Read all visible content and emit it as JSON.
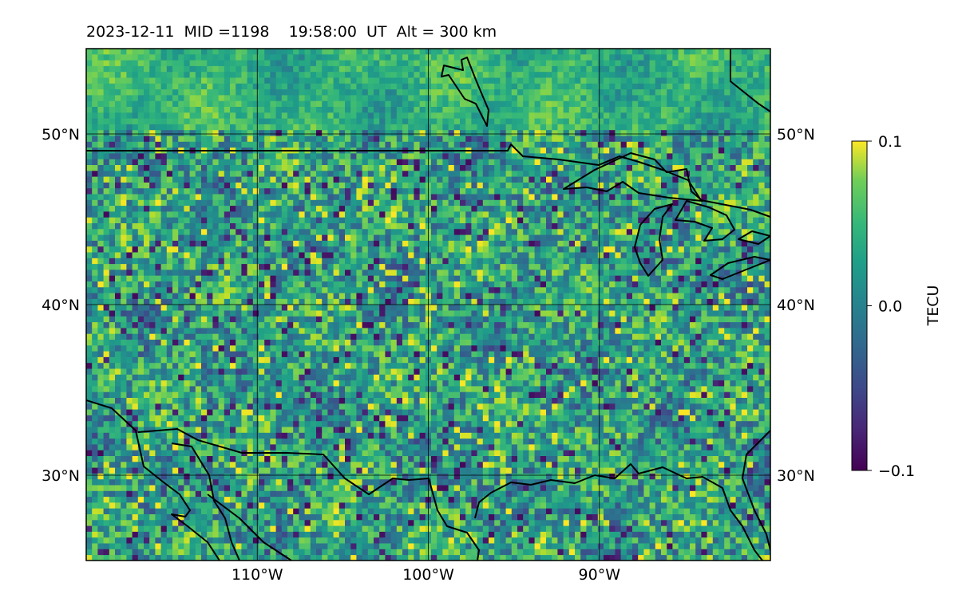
{
  "title": "2023-12-11  MID =1198    19:58:00  UT  Alt = 300 km",
  "map": {
    "lon_range": [
      -120,
      -80
    ],
    "lat_range": [
      25,
      55
    ],
    "lon_ticks": [
      {
        "value": -110,
        "label": "110°W"
      },
      {
        "value": -100,
        "label": "100°W"
      },
      {
        "value": -90,
        "label": "90°W"
      }
    ],
    "lat_ticks": [
      {
        "value": 30,
        "label": "30°N"
      },
      {
        "value": 40,
        "label": "40°N"
      },
      {
        "value": 50,
        "label": "50°N"
      }
    ],
    "colormap": "viridis",
    "field_description": "TEC perturbation",
    "coastlines": true,
    "gridlines": true,
    "colors": {
      "coastline": "#000000",
      "grid": "#000000",
      "low": "#440154",
      "mid": "#21918c",
      "high": "#fde725"
    }
  },
  "colorbar": {
    "label": "TECU",
    "min": -0.1,
    "max": 0.1,
    "ticks": [
      {
        "value": 0.1,
        "label": "0.1"
      },
      {
        "value": 0.0,
        "label": "0.0"
      },
      {
        "value": -0.1,
        "label": "−0.1"
      }
    ]
  }
}
